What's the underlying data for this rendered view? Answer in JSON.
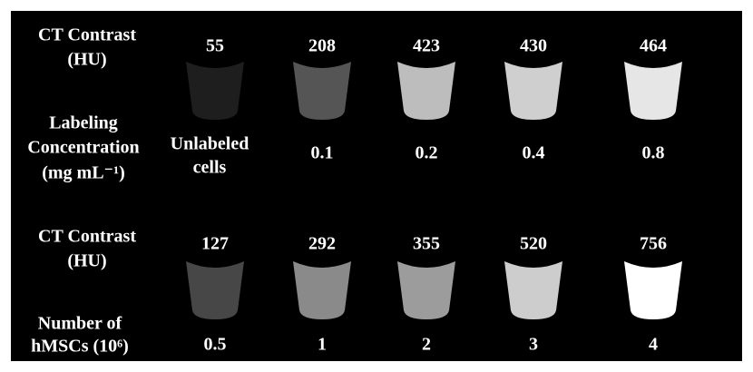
{
  "top": {
    "contrast_label": [
      "CT Contrast",
      "(HU)"
    ],
    "contrast_values": [
      55,
      208,
      423,
      430,
      464
    ],
    "concentration_label": [
      "Labeling",
      "Concentration",
      "(mg mL⁻¹)"
    ],
    "concentration_values": [
      [
        "Unlabeled",
        "cells"
      ],
      0.1,
      0.2,
      0.4,
      0.8
    ]
  },
  "bottom": {
    "contrast_label": [
      "CT Contrast",
      "(HU)"
    ],
    "contrast_values": [
      127,
      292,
      355,
      520,
      756
    ],
    "cells_label": [
      "Number of",
      "hMSCs (10⁶)"
    ],
    "cells_values": [
      0.5,
      1,
      2,
      3,
      4
    ]
  }
}
